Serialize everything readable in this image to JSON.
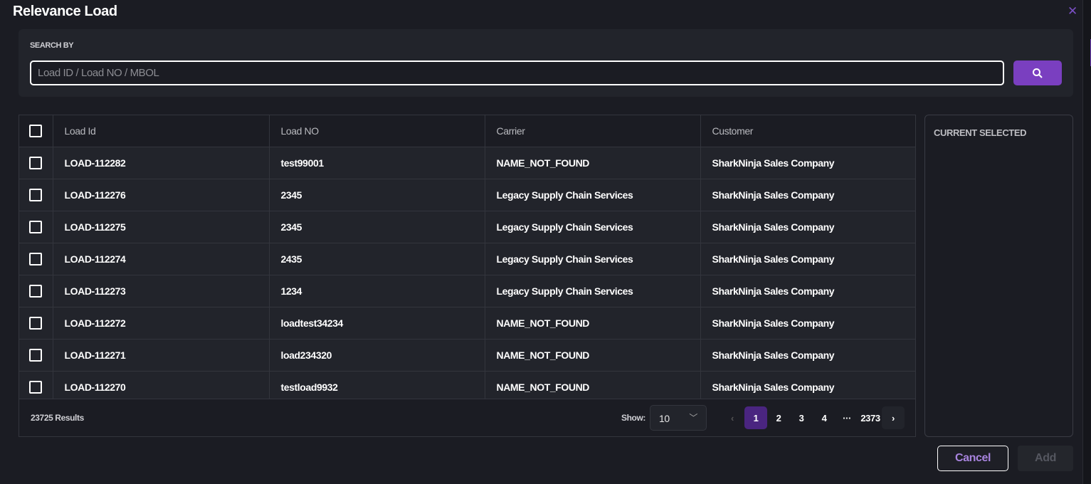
{
  "title": "Relevance Load",
  "search": {
    "label": "SEARCH BY",
    "value": "",
    "placeholder": "Load ID / Load NO / MBOL"
  },
  "table": {
    "columns": [
      "Load Id",
      "Load NO",
      "Carrier",
      "Customer"
    ],
    "rows": [
      [
        "LOAD-112282",
        "test99001",
        "NAME_NOT_FOUND",
        "SharkNinja Sales Company"
      ],
      [
        "LOAD-112276",
        "2345",
        "Legacy Supply Chain Services",
        "SharkNinja Sales Company"
      ],
      [
        "LOAD-112275",
        "2345",
        "Legacy Supply Chain Services",
        "SharkNinja Sales Company"
      ],
      [
        "LOAD-112274",
        "2435",
        "Legacy Supply Chain Services",
        "SharkNinja Sales Company"
      ],
      [
        "LOAD-112273",
        "1234",
        "Legacy Supply Chain Services",
        "SharkNinja Sales Company"
      ],
      [
        "LOAD-112272",
        "loadtest34234",
        "NAME_NOT_FOUND",
        "SharkNinja Sales Company"
      ],
      [
        "LOAD-112271",
        "load234320",
        "NAME_NOT_FOUND",
        "SharkNinja Sales Company"
      ],
      [
        "LOAD-112270",
        "testload9932",
        "NAME_NOT_FOUND",
        "SharkNinja Sales Company"
      ]
    ]
  },
  "footer": {
    "results": "23725 Results",
    "show_label": "Show:",
    "page_size": "10",
    "pages": [
      "1",
      "2",
      "3",
      "4",
      "···",
      "2373"
    ],
    "current_page": "1"
  },
  "side": {
    "title": "CURRENT SELECTED"
  },
  "actions": {
    "cancel": "Cancel",
    "add": "Add"
  },
  "colors": {
    "accent": "#7a3fc0",
    "active_page": "#4a2580",
    "background": "#1b1c23"
  }
}
